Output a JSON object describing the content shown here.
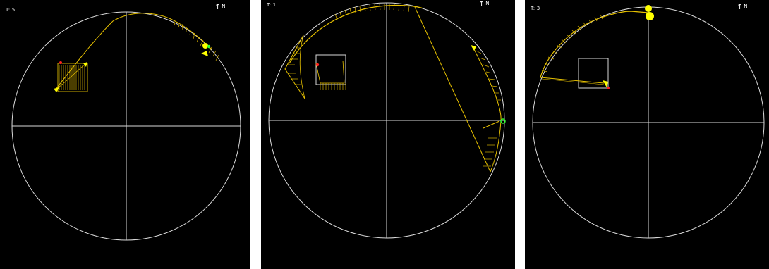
{
  "panels": [
    {
      "time_label": "T: 5",
      "north_arrow": "↑",
      "north_letter": "N"
    },
    {
      "time_label": "T: 1",
      "north_arrow": "↑",
      "north_letter": "N"
    },
    {
      "time_label": "T: 3",
      "north_arrow": "↑",
      "north_letter": "N"
    }
  ],
  "colors": {
    "background": "#000000",
    "grid": "#d9d9d9",
    "track": "#e8c200",
    "highlight": "#ffff00",
    "marker_red": "#ff2020",
    "marker_green": "#30ff30"
  }
}
